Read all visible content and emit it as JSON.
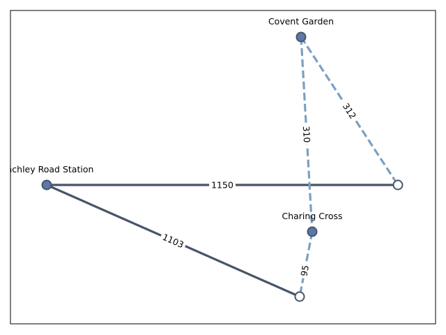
{
  "graph": {
    "nodes": [
      {
        "id": "covent",
        "label": "Covent Garden",
        "style": "filled"
      },
      {
        "id": "finchley",
        "label": "Finchley Road Station",
        "style": "filled"
      },
      {
        "id": "charing",
        "label": "Charing Cross",
        "style": "filled"
      },
      {
        "id": "east",
        "label": "",
        "style": "hollow"
      },
      {
        "id": "south",
        "label": "",
        "style": "hollow"
      }
    ],
    "edges": [
      {
        "from": "finchley",
        "to": "east",
        "label": "1150",
        "style": "solid"
      },
      {
        "from": "finchley",
        "to": "south",
        "label": "1103",
        "style": "solid"
      },
      {
        "from": "covent",
        "to": "charing",
        "label": "310",
        "style": "dashed"
      },
      {
        "from": "covent",
        "to": "east",
        "label": "312",
        "style": "dashed"
      },
      {
        "from": "charing",
        "to": "south",
        "label": "95",
        "style": "dashed"
      }
    ],
    "colors": {
      "solid_edge": "#475569",
      "dashed_edge": "#7aa0c0",
      "node_fill": "#5a78a8",
      "node_stroke": "#475569",
      "hollow_fill": "#ffffff",
      "frame": "#000000"
    }
  }
}
